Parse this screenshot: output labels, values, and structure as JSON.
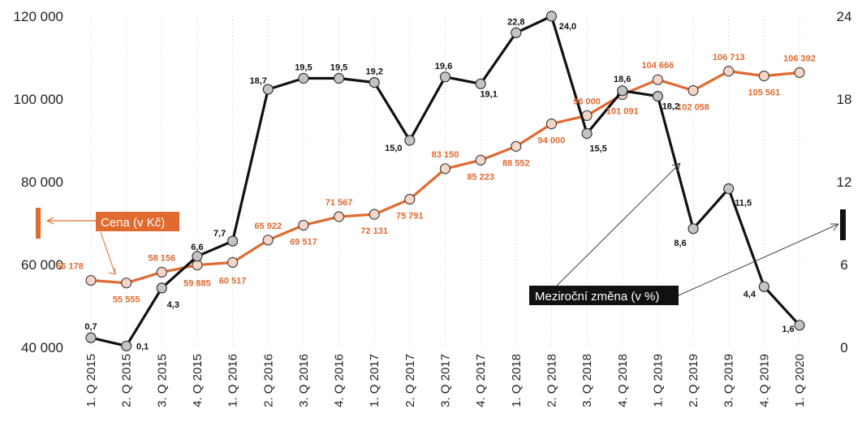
{
  "chart_data": {
    "type": "line",
    "categories": [
      "1. Q 2015",
      "2. Q 2015",
      "3. Q 2015",
      "4. Q 2015",
      "1. Q 2016",
      "2. Q 2016",
      "3. Q 2016",
      "4. Q 2016",
      "1. Q 2017",
      "2. Q 2017",
      "3. Q 2017",
      "4. Q 2017",
      "1. Q 2018",
      "2. Q 2018",
      "3. Q 2018",
      "4. Q 2018",
      "1. Q 2019",
      "2. Q 2019",
      "3. Q 2019",
      "4. Q 2019",
      "1. Q 2020"
    ],
    "series": [
      {
        "name": "Cena (v Kč)",
        "axis": "left",
        "color": "#e06a2f",
        "values": [
          56178,
          55555,
          58156,
          59885,
          60517,
          65922,
          69517,
          71567,
          72131,
          75791,
          83150,
          85223,
          88552,
          94000,
          96000,
          101091,
          104666,
          102058,
          106713,
          105561,
          106392
        ],
        "labels": [
          "56 178",
          "55 555",
          "58 156",
          "59 885",
          "60 517",
          "65 922",
          "69 517",
          "71 567",
          "72 131",
          "75 791",
          "83 150",
          "85 223",
          "88 552",
          "94 000",
          "96 000",
          "101 091",
          "104 666",
          "102 058",
          "106 713",
          "105 561",
          "106 392"
        ]
      },
      {
        "name": "Meziroční změna (v %)",
        "axis": "right",
        "color": "#111111",
        "values": [
          0.7,
          0.1,
          4.3,
          6.6,
          7.7,
          18.7,
          19.5,
          19.5,
          19.2,
          15.0,
          19.6,
          19.1,
          22.8,
          24.0,
          15.5,
          18.6,
          18.2,
          8.6,
          11.5,
          4.4,
          1.6
        ],
        "labels": [
          "0,7",
          "0,1",
          "4,3",
          "6,6",
          "7,7",
          "18,7",
          "19,5",
          "19,5",
          "19,2",
          "15,0",
          "19,6",
          "19,1",
          "22,8",
          "24,0",
          "15,5",
          "18,6",
          "18,2",
          "8,6",
          "11,5",
          "4,4",
          "1,6"
        ]
      }
    ],
    "y_left": {
      "ylim": [
        40000,
        120000
      ],
      "ticks": [
        40000,
        60000,
        80000,
        100000,
        120000
      ],
      "tick_labels": [
        "40 000",
        "60 000",
        "80 000",
        "100 000",
        "120 000"
      ]
    },
    "y_right": {
      "ylim": [
        0,
        24
      ],
      "ticks": [
        0,
        6,
        12,
        18,
        24
      ],
      "tick_labels": [
        "0",
        "6",
        "12",
        "18",
        "24"
      ]
    },
    "grid": "vertical dotted",
    "legend": {
      "price_label": "Cena (v Kč)",
      "change_label": "Meziroční změna (v %)"
    }
  }
}
